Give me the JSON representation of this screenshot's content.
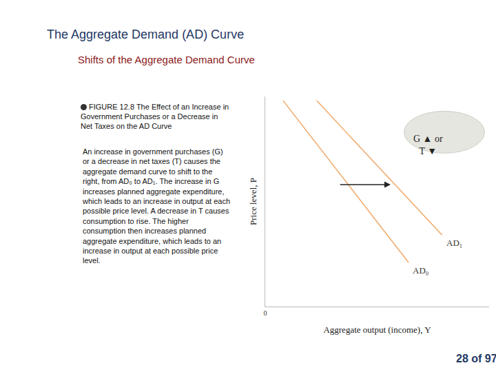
{
  "page": {
    "title": "The Aggregate Demand (AD) Curve",
    "subtitle": "Shifts of the Aggregate Demand Curve",
    "figure_caption": "FIGURE 12.8 The Effect of an Increase in Government Purchases or a Decrease in Net Taxes on the AD Curve",
    "description": "An increase in government purchases (G) or a decrease in net taxes (T) causes the aggregate demand curve to shift to the right, from AD₀ to AD₁. The increase in G increases planned aggregate expenditure, which leads to an increase in output at each possible price level. A decrease in T causes consumption to rise. The higher consumption then increases planned aggregate expenditure, which leads to an increase in output at each possible price level.",
    "page_number": "28 of 97"
  },
  "chart_data": {
    "type": "line",
    "x_label": "Aggregate output (income), Y",
    "y_label": "Price level, P",
    "series": [
      {
        "name": "AD₀",
        "color": "#f0a868",
        "x": [
          0.8,
          6.4
        ],
        "values": [
          9.8,
          2.1
        ]
      },
      {
        "name": "AD₁",
        "color": "#f0a868",
        "x": [
          2.3,
          7.9
        ],
        "values": [
          9.8,
          3.4
        ]
      }
    ],
    "xlim": [
      0,
      10
    ],
    "ylim": [
      0,
      10
    ],
    "xticks": [
      0
    ],
    "yticks": [],
    "tick_labels": "x",
    "grid": false,
    "annotations": [
      {
        "text": [
          "G ▲ or",
          "T ▼"
        ]
      }
    ]
  }
}
